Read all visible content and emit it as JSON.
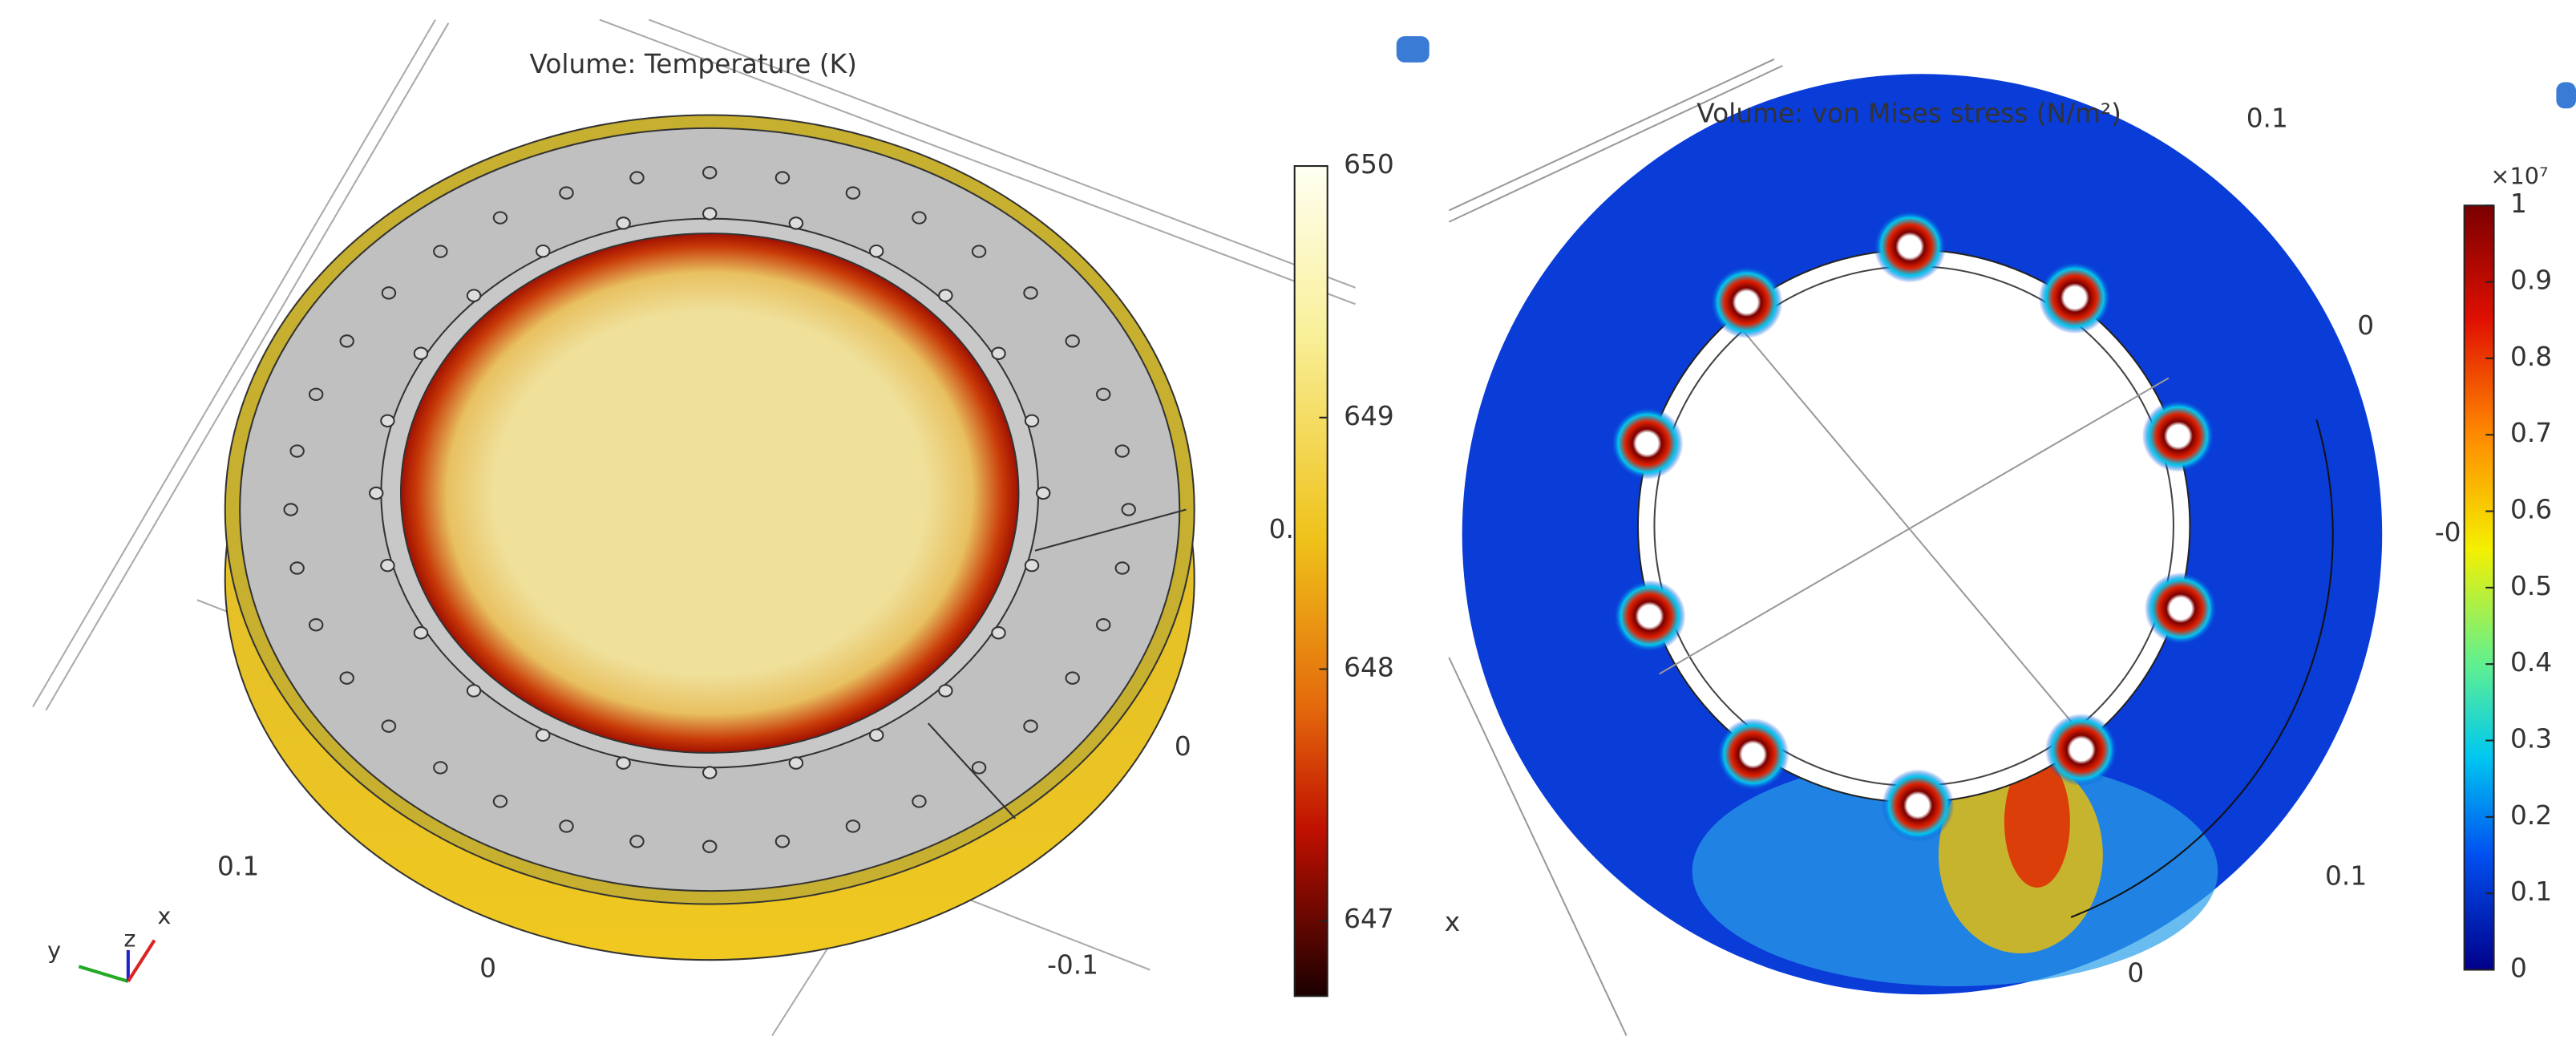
{
  "panels": [
    {
      "title": "Volume: Temperature (K)",
      "colorbar": {
        "lim": [
          646.7,
          650
        ],
        "ticks": [
          650,
          649,
          648,
          647
        ]
      },
      "axis_labels": [
        "0.1",
        "0",
        "-0.1",
        "0",
        "0."
      ],
      "triad": [
        "y",
        "z",
        "x"
      ]
    },
    {
      "title": "Volume: von Mises stress (N/m²)",
      "colorbar": {
        "multiplier": "×10⁷",
        "lim": [
          0,
          1
        ],
        "ticks": [
          1,
          0.9,
          0.8,
          0.7,
          0.6,
          0.5,
          0.4,
          0.3,
          0.2,
          0.1,
          0
        ]
      },
      "axis_labels": [
        "0.1",
        "0",
        "-0",
        "0.1",
        "0",
        "x"
      ]
    }
  ]
}
